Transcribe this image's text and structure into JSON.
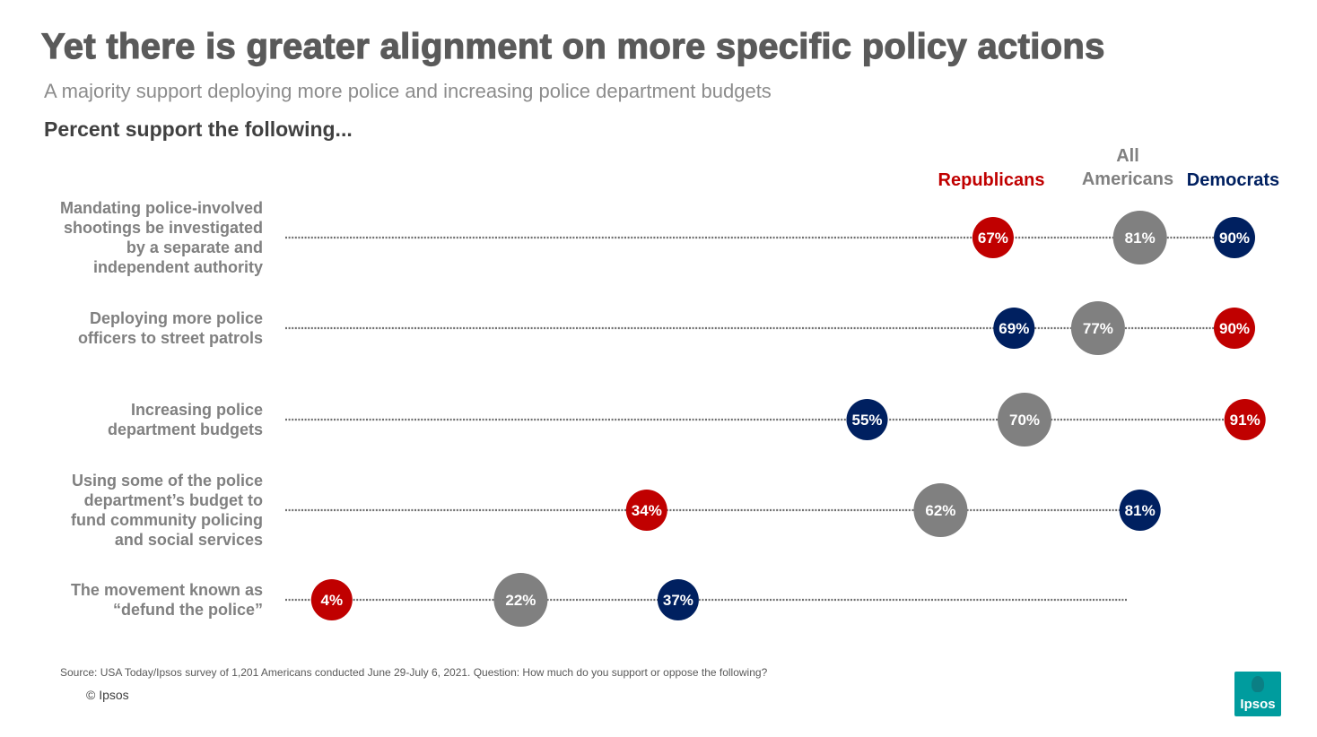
{
  "title": "Yet there is greater alignment on more specific policy actions",
  "subtitle": "A majority support deploying more police and increasing police department budgets",
  "question": "Percent support the following...",
  "colors": {
    "republicans": "#c00000",
    "all": "#808080",
    "democrats": "#002060"
  },
  "chart_data": {
    "type": "scatter",
    "title": "Percent support the following...",
    "xlim": [
      0,
      100
    ],
    "legend_position": "top-right",
    "series": [
      {
        "key": "republicans",
        "name": "Republicans",
        "color": "#c00000"
      },
      {
        "key": "all",
        "name": "All Americans",
        "color": "#808080"
      },
      {
        "key": "democrats",
        "name": "Democrats",
        "color": "#002060"
      }
    ],
    "legend": [
      {
        "key": "republicans",
        "lines": [
          "Republicans"
        ]
      },
      {
        "key": "all",
        "lines": [
          "All",
          "Americans"
        ]
      },
      {
        "key": "democrats",
        "lines": [
          "Democrats"
        ]
      }
    ],
    "rows": [
      {
        "lines": [
          "Mandating police-involved",
          "shootings be investigated",
          "by a separate and",
          "independent authority"
        ],
        "values": {
          "republicans": 67,
          "all": 81,
          "democrats": 90
        },
        "labels": {
          "republicans": "67%",
          "all": "81%",
          "democrats": "90%"
        }
      },
      {
        "lines": [
          "Deploying more police",
          "officers to street patrols"
        ],
        "values": {
          "democrats": 69,
          "all": 77,
          "republicans": 90
        },
        "labels": {
          "democrats": "69%",
          "all": "77%",
          "republicans": "90%"
        }
      },
      {
        "lines": [
          "Increasing police",
          "department budgets"
        ],
        "values": {
          "democrats": 55,
          "all": 70,
          "republicans": 91
        },
        "labels": {
          "democrats": "55%",
          "all": "70%",
          "republicans": "91%"
        }
      },
      {
        "lines": [
          "Using some of the police",
          "department’s budget to",
          "fund community policing",
          "and social services"
        ],
        "values": {
          "republicans": 34,
          "all": 62,
          "democrats": 81
        },
        "labels": {
          "republicans": "34%",
          "all": "62%",
          "democrats": "81%"
        }
      },
      {
        "lines": [
          "The movement known as",
          "“defund the police”"
        ],
        "values": {
          "republicans": 4,
          "all": 22,
          "democrats": 37
        },
        "labels": {
          "republicans": "4%",
          "all": "22%",
          "democrats": "37%"
        }
      }
    ]
  },
  "source": "Source: USA Today/Ipsos survey of 1,201 Americans conducted June 29-July 6, 2021. Question: How much do you support or oppose the following?",
  "copyright": "© Ipsos",
  "logo_text": "Ipsos"
}
